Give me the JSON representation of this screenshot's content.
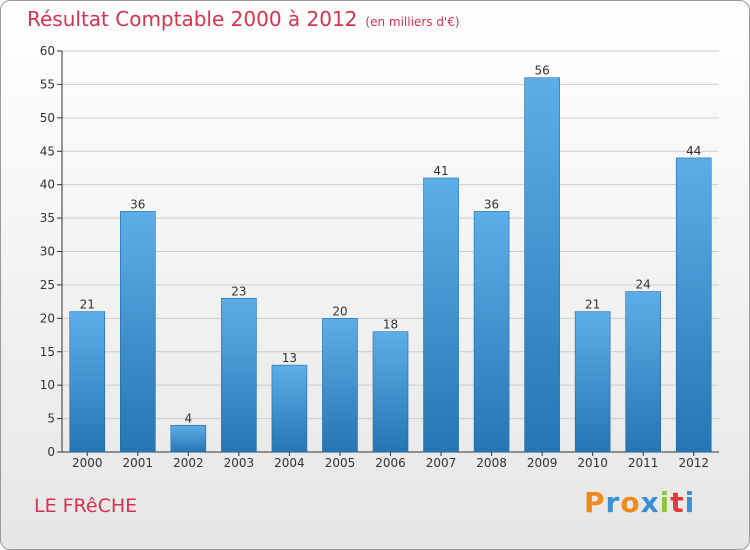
{
  "chart_data": {
    "type": "bar",
    "title": "Résultat Comptable 2000 à 2012",
    "subtitle": "(en milliers d'€)",
    "categories": [
      "2000",
      "2001",
      "2002",
      "2003",
      "2004",
      "2005",
      "2006",
      "2007",
      "2008",
      "2009",
      "2010",
      "2011",
      "2012"
    ],
    "values": [
      21,
      36,
      4,
      23,
      13,
      20,
      18,
      41,
      36,
      56,
      21,
      24,
      44
    ],
    "ylim": [
      0,
      60
    ],
    "yticks": [
      0,
      5,
      10,
      15,
      20,
      25,
      30,
      35,
      40,
      45,
      50,
      55,
      60
    ],
    "xlabel": "",
    "ylabel": "",
    "grid": true,
    "bar_color_top": "#5daee8",
    "bar_color_bottom": "#2675b4"
  },
  "location": "LE FRêCHE",
  "brand": {
    "text": "Proxiti",
    "letter_colors": [
      "#f08a1c",
      "#3b8fd6",
      "#f08a1c",
      "#3b8fd6",
      "#8cc63f",
      "#e03a3a",
      "#3b8fd6"
    ]
  },
  "colors": {
    "title": "#d8324e",
    "grid": "#cccccc",
    "axis": "#333333"
  }
}
